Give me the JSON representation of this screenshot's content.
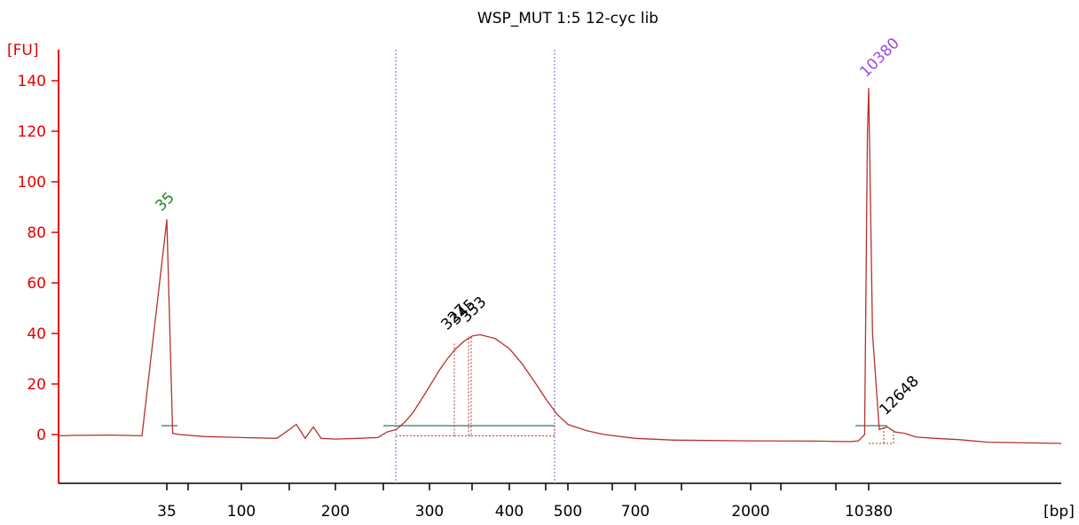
{
  "chart_data": {
    "type": "line",
    "title": "WSP_MUT 1:5 12-cyc lib",
    "ylabel": "[FU]",
    "xlabel": "[bp]",
    "ylim": [
      -20,
      150
    ],
    "yticks": [
      0,
      20,
      40,
      60,
      80,
      100,
      120,
      140
    ],
    "xtick_labels": [
      "35",
      "100",
      "200",
      "300",
      "400",
      "500",
      "700",
      "2000",
      "10380"
    ],
    "colors": {
      "axis": "#e60000",
      "trace": "#b5322a",
      "lower_marker": "#1a8a1a",
      "upper_marker": "#9b4be0",
      "region": "#4f8f86",
      "cursor": "#6a6ad0"
    },
    "grid": false,
    "peak_labels": [
      {
        "text": "35",
        "marker": "lower"
      },
      {
        "text": "10380",
        "marker": "upper"
      },
      {
        "text": "327",
        "marker": "none"
      },
      {
        "text": "345",
        "marker": "none"
      },
      {
        "text": "353",
        "marker": "none"
      },
      {
        "text": "12648",
        "marker": "none"
      }
    ],
    "series": [
      {
        "values_bp": [
          18,
          20,
          25,
          30,
          35,
          38,
          42,
          60,
          80,
          100,
          130,
          150,
          160,
          170,
          180,
          200,
          220,
          240,
          250,
          260,
          270,
          280,
          290,
          300,
          310,
          320,
          330,
          340,
          350,
          360,
          380,
          400,
          420,
          440,
          460,
          480,
          500,
          550,
          600,
          700,
          1000,
          2000,
          5000,
          8000,
          9000,
          9800,
          10200,
          10380,
          10600,
          11000,
          11500,
          12000,
          12648,
          13500,
          15000,
          17000,
          20000,
          30000
        ],
        "values_fu": [
          -0.5,
          -0.3,
          -0.2,
          -0.5,
          85,
          0.5,
          0,
          -0.8,
          -1,
          -1.2,
          -1.5,
          4,
          -1.5,
          3,
          -1.5,
          -1.8,
          -1.5,
          -1.2,
          1,
          2,
          5,
          9,
          14,
          19,
          25,
          30,
          34,
          37,
          39,
          39.5,
          38,
          34,
          28,
          21,
          14,
          8,
          4,
          1.5,
          0,
          -1.5,
          -2.2,
          -2.5,
          -2.6,
          -2.8,
          -2.5,
          0,
          120,
          137,
          40,
          2,
          3,
          1,
          0.5,
          -1,
          -1.5,
          -2,
          -3,
          -3.5
        ]
      }
    ]
  }
}
